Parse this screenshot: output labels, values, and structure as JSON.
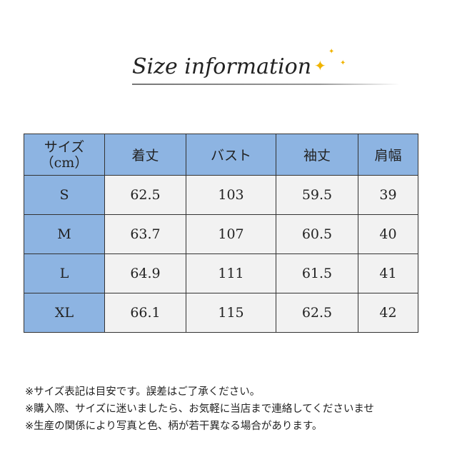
{
  "title": "Size information",
  "table": {
    "header": [
      "サイズ\n（cm）",
      "着丈",
      "バスト",
      "袖丈",
      "肩幅"
    ],
    "header_line1": "サイズ",
    "header_line2": "（cm）",
    "rows": [
      [
        "S",
        "62.5",
        "103",
        "59.5",
        "39"
      ],
      [
        "M",
        "63.7",
        "107",
        "60.5",
        "40"
      ],
      [
        "L",
        "64.9",
        "111",
        "61.5",
        "41"
      ],
      [
        "XL",
        "66.1",
        "115",
        "62.5",
        "42"
      ]
    ]
  },
  "notes": [
    "※サイズ表記は目安です。誤差はご了承ください。",
    "※購入際、サイズに迷いましたら、お気軽に当店まで連絡してくださいませ",
    "※生産の関係により写真と色、柄が若干異なる場合があります。"
  ],
  "colors": {
    "header_bg": "#8db4e2",
    "cell_bg": "#f2f2f2",
    "sparkle": "#f0b400"
  }
}
